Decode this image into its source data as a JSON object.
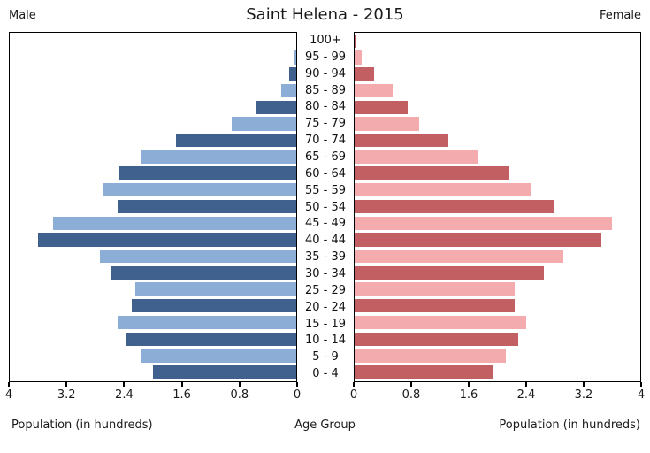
{
  "header": {
    "title": "Saint Helena - 2015",
    "male_label": "Male",
    "female_label": "Female"
  },
  "footer": {
    "left_xlabel": "Population (in hundreds)",
    "center_label": "Age Group",
    "right_xlabel": "Population (in hundreds)"
  },
  "axes": {
    "left_tick_labels": [
      "4",
      "3.2",
      "2.4",
      "1.6",
      "0.8",
      "0"
    ],
    "left_tick_values": [
      4,
      3.2,
      2.4,
      1.6,
      0.8,
      0
    ],
    "right_tick_labels": [
      "0",
      "0.8",
      "1.6",
      "2.4",
      "3.2",
      "4"
    ],
    "right_tick_values": [
      0,
      0.8,
      1.6,
      2.4,
      3.2,
      4
    ]
  },
  "colors": {
    "male_dark": "#40618E",
    "male_light": "#8CAED6",
    "female_dark": "#C25F63",
    "female_light": "#F4ABAE",
    "axis": "#000000"
  },
  "chart_data": {
    "type": "bar",
    "subtype": "population-pyramid",
    "title": "Saint Helena - 2015",
    "categories_top_to_bottom": [
      "100+",
      "95 - 99",
      "90 - 94",
      "85 - 89",
      "80 - 84",
      "75 - 79",
      "70 - 74",
      "65 - 69",
      "60 - 64",
      "55 - 59",
      "50 - 54",
      "45 - 49",
      "40 - 44",
      "35 - 39",
      "30 - 34",
      "25 - 29",
      "20 - 24",
      "15 - 19",
      "10 - 14",
      "5 - 9",
      "0 - 4"
    ],
    "series": [
      {
        "name": "Male",
        "side": "left",
        "values_top_to_bottom": [
          0,
          0.03,
          0.1,
          0.21,
          0.57,
          0.91,
          1.69,
          2.18,
          2.49,
          2.71,
          2.5,
          3.41,
          3.62,
          2.75,
          2.6,
          2.26,
          2.31,
          2.5,
          2.39,
          2.18,
          2.01
        ]
      },
      {
        "name": "Female",
        "side": "right",
        "values_top_to_bottom": [
          0.03,
          0.1,
          0.27,
          0.53,
          0.75,
          0.9,
          1.31,
          1.74,
          2.17,
          2.48,
          2.8,
          3.61,
          3.47,
          2.93,
          2.66,
          2.25,
          2.25,
          2.41,
          2.3,
          2.12,
          1.95
        ]
      }
    ],
    "x_axis": {
      "label": "Population (in hundreds)",
      "max_each_side": 4,
      "ticks": [
        0,
        0.8,
        1.6,
        2.4,
        3.2,
        4
      ]
    },
    "y_axis": {
      "label": "Age Group"
    },
    "grid": false,
    "legend": "none",
    "bar_color_rule": "alternating dark/light per row; 100+ row dark"
  }
}
